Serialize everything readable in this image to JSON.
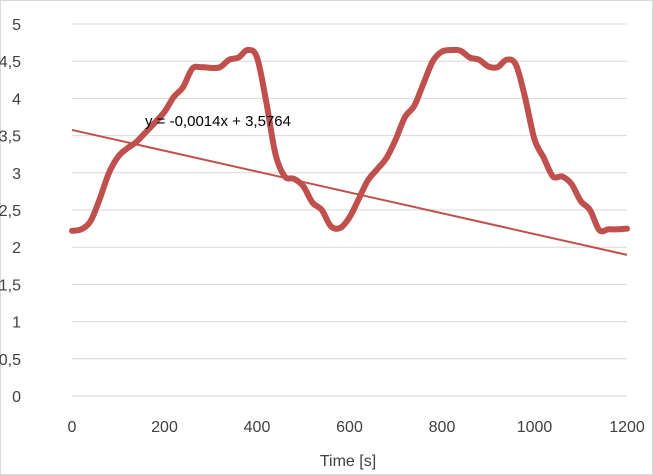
{
  "chart_data": {
    "type": "line",
    "title": "",
    "xlabel": "Time [s]",
    "ylabel": "",
    "xlim": [
      0,
      1200
    ],
    "ylim": [
      0,
      5
    ],
    "grid": true,
    "legend": "none",
    "x_ticks": [
      "0",
      "200",
      "400",
      "600",
      "800",
      "1000",
      "1200"
    ],
    "y_ticks": [
      "0",
      "0,5",
      "1",
      "1,5",
      "2",
      "2,5",
      "3",
      "3,5",
      "4",
      "4,5",
      "5"
    ],
    "series": [
      {
        "color": "#c0504d",
        "x": [
          0,
          20,
          40,
          60,
          80,
          100,
          120,
          140,
          160,
          180,
          200,
          220,
          240,
          260,
          280,
          300,
          320,
          340,
          360,
          380,
          400,
          420,
          440,
          460,
          480,
          500,
          520,
          540,
          560,
          580,
          600,
          620,
          640,
          660,
          680,
          700,
          720,
          740,
          760,
          780,
          800,
          820,
          840,
          860,
          880,
          900,
          920,
          940,
          960,
          980,
          1000,
          1020,
          1040,
          1060,
          1080,
          1100,
          1120,
          1140,
          1160,
          1180,
          1200
        ],
        "y": [
          2.22,
          2.24,
          2.35,
          2.65,
          3.0,
          3.22,
          3.33,
          3.42,
          3.55,
          3.68,
          3.82,
          4.02,
          4.15,
          4.4,
          4.42,
          4.41,
          4.42,
          4.52,
          4.55,
          4.65,
          4.55,
          3.95,
          3.25,
          2.95,
          2.92,
          2.82,
          2.6,
          2.5,
          2.28,
          2.26,
          2.4,
          2.65,
          2.9,
          3.05,
          3.2,
          3.45,
          3.75,
          3.9,
          4.2,
          4.5,
          4.63,
          4.65,
          4.64,
          4.55,
          4.52,
          4.43,
          4.42,
          4.52,
          4.45,
          4.0,
          3.45,
          3.2,
          2.95,
          2.95,
          2.85,
          2.62,
          2.5,
          2.23,
          2.24,
          2.24,
          2.25
        ]
      }
    ],
    "trendline": {
      "color": "#c0504d",
      "slope": -0.0014,
      "intercept": 3.5764,
      "x_range": [
        0,
        1200
      ],
      "label": "y = -0,0014x + 3,5764"
    }
  }
}
